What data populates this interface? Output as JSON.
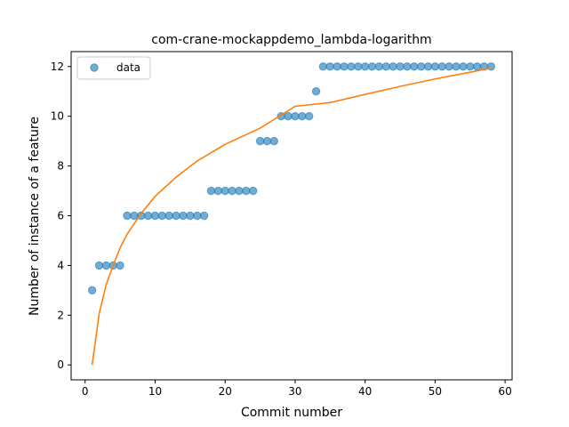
{
  "chart_data": {
    "type": "scatter",
    "title": "com-crane-mockappdemo_lambda-logarithm",
    "xlabel": "Commit number",
    "ylabel": "Number of instance of a feature",
    "xlim": [
      -2,
      61
    ],
    "ylim": [
      -0.6,
      12.6
    ],
    "xticks": [
      0,
      10,
      20,
      30,
      40,
      50,
      60
    ],
    "yticks": [
      0,
      2,
      4,
      6,
      8,
      10,
      12
    ],
    "legend": {
      "placement": "top-left",
      "entries": [
        "data"
      ]
    },
    "grid": false,
    "colors": {
      "data": "#1f77b4",
      "fit": "#ff7f0e"
    },
    "series": [
      {
        "name": "data",
        "kind": "scatter",
        "x": [
          1,
          2,
          3,
          4,
          5,
          6,
          7,
          8,
          9,
          10,
          11,
          12,
          13,
          14,
          15,
          16,
          17,
          18,
          19,
          20,
          21,
          22,
          23,
          24,
          25,
          26,
          27,
          28,
          29,
          30,
          31,
          32,
          33,
          34,
          35,
          36,
          37,
          38,
          39,
          40,
          41,
          42,
          43,
          44,
          45,
          46,
          47,
          48,
          49,
          50,
          51,
          52,
          53,
          54,
          55,
          56,
          57,
          58
        ],
        "y": [
          3,
          4,
          4,
          4,
          4,
          6,
          6,
          6,
          6,
          6,
          6,
          6,
          6,
          6,
          6,
          6,
          6,
          7,
          7,
          7,
          7,
          7,
          7,
          7,
          9,
          9,
          9,
          10,
          10,
          10,
          10,
          10,
          11,
          12,
          12,
          12,
          12,
          12,
          12,
          12,
          12,
          12,
          12,
          12,
          12,
          12,
          12,
          12,
          12,
          12,
          12,
          12,
          12,
          12,
          12,
          12,
          12,
          12
        ]
      },
      {
        "kind": "line",
        "x": [
          1,
          2,
          3,
          4,
          5,
          6,
          8,
          10,
          13,
          16,
          20,
          25,
          30,
          35,
          40,
          45,
          50,
          55,
          58
        ],
        "y": [
          0,
          2.05,
          3.22,
          4.0,
          4.71,
          5.26,
          6.09,
          6.78,
          7.55,
          8.2,
          8.87,
          9.52,
          10.4,
          10.55,
          10.88,
          11.2,
          11.5,
          11.77,
          11.94
        ]
      }
    ]
  }
}
